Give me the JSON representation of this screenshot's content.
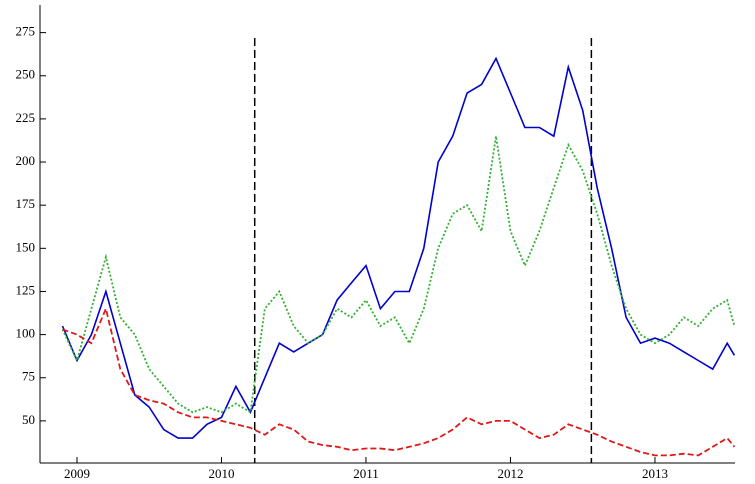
{
  "chart_data": {
    "type": "line",
    "x": [
      2008.9,
      2009.0,
      2009.1,
      2009.2,
      2009.3,
      2009.4,
      2009.5,
      2009.6,
      2009.7,
      2009.8,
      2009.9,
      2010.0,
      2010.1,
      2010.2,
      2010.3,
      2010.4,
      2010.5,
      2010.6,
      2010.7,
      2010.8,
      2010.9,
      2011.0,
      2011.1,
      2011.2,
      2011.3,
      2011.4,
      2011.5,
      2011.6,
      2011.7,
      2011.8,
      2011.9,
      2012.0,
      2012.1,
      2012.2,
      2012.3,
      2012.4,
      2012.5,
      2012.6,
      2012.7,
      2012.8,
      2012.9,
      2013.0,
      2013.1,
      2013.2,
      2013.3,
      2013.4,
      2013.5,
      2013.55
    ],
    "series": [
      {
        "color": "#0000d0",
        "style": "solid",
        "values": [
          105,
          85,
          100,
          125,
          95,
          65,
          58,
          45,
          40,
          40,
          48,
          52,
          70,
          55,
          75,
          95,
          90,
          95,
          100,
          120,
          130,
          140,
          115,
          125,
          125,
          150,
          200,
          215,
          240,
          245,
          260,
          240,
          220,
          220,
          215,
          255,
          230,
          185,
          150,
          110,
          95,
          98,
          95,
          90,
          85,
          80,
          95,
          88
        ]
      },
      {
        "color": "#30b030",
        "style": "dotted",
        "values": [
          103,
          85,
          115,
          145,
          110,
          100,
          80,
          70,
          60,
          55,
          58,
          55,
          60,
          55,
          115,
          125,
          105,
          95,
          100,
          115,
          110,
          120,
          105,
          110,
          95,
          115,
          150,
          170,
          175,
          160,
          215,
          160,
          140,
          160,
          185,
          210,
          195,
          170,
          140,
          115,
          100,
          95,
          100,
          110,
          105,
          115,
          120,
          105
        ]
      },
      {
        "color": "#e01818",
        "style": "dashed",
        "values": [
          103,
          100,
          95,
          115,
          80,
          65,
          62,
          60,
          55,
          52,
          52,
          50,
          48,
          46,
          42,
          48,
          45,
          38,
          36,
          35,
          33,
          34,
          34,
          33,
          35,
          37,
          40,
          45,
          52,
          48,
          50,
          50,
          45,
          40,
          42,
          48,
          45,
          42,
          38,
          35,
          32,
          30,
          30,
          31,
          30,
          35,
          40,
          35
        ]
      }
    ],
    "vlines": [
      2010.23,
      2012.56
    ],
    "xlim": [
      2008.744,
      2013.554
    ],
    "xticks": [
      2009,
      2010,
      2011,
      2012,
      2013
    ],
    "ylim": [
      25.6,
      291
    ],
    "yticks": [
      50,
      75,
      100,
      125,
      150,
      175,
      200,
      225,
      250,
      275
    ]
  }
}
